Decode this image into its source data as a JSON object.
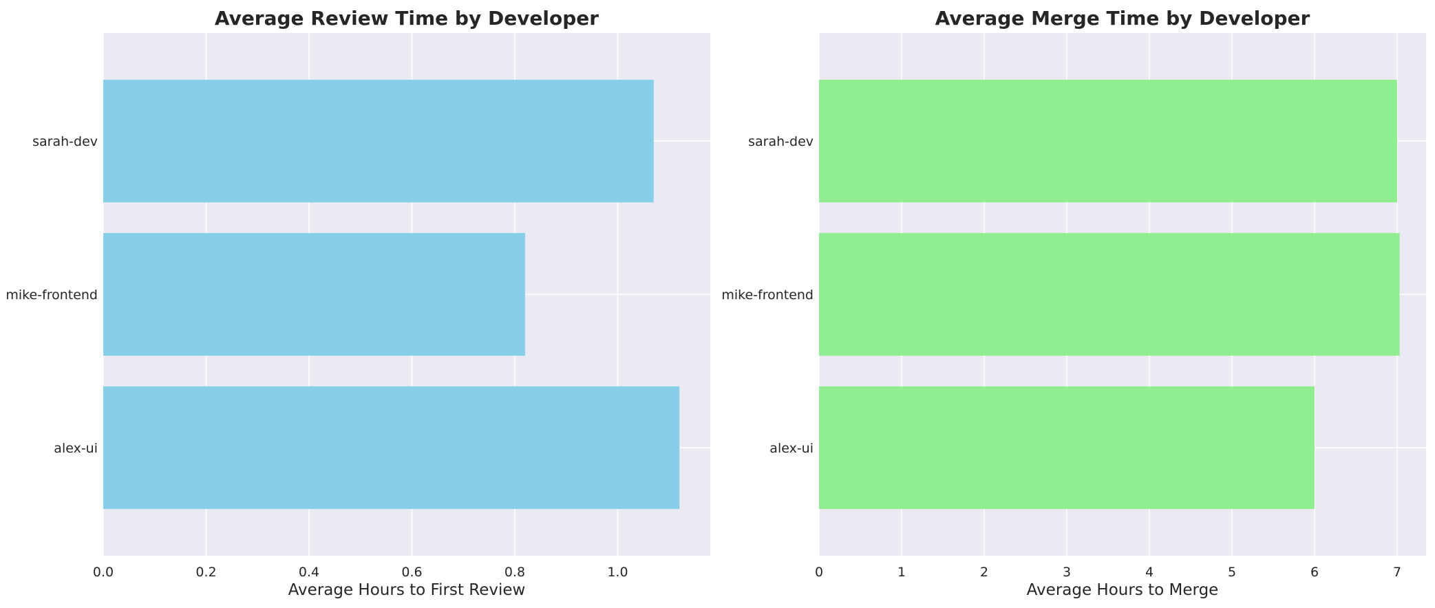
{
  "chart_data": [
    {
      "type": "bar",
      "orientation": "horizontal",
      "title": "Average Review Time by Developer",
      "xlabel": "Average Hours to First Review",
      "ylabel": "",
      "categories": [
        "sarah-dev",
        "mike-frontend",
        "alex-ui"
      ],
      "values": [
        1.07,
        0.82,
        1.12
      ],
      "xlim": [
        0,
        1.18
      ],
      "xticks": [
        0.0,
        0.2,
        0.4,
        0.6,
        0.8,
        1.0
      ],
      "xtick_labels": [
        "0.0",
        "0.2",
        "0.4",
        "0.6",
        "0.8",
        "1.0"
      ],
      "bar_color": "#87ceeb",
      "grid": true
    },
    {
      "type": "bar",
      "orientation": "horizontal",
      "title": "Average Merge Time by Developer",
      "xlabel": "Average Hours to Merge",
      "ylabel": "",
      "categories": [
        "sarah-dev",
        "mike-frontend",
        "alex-ui"
      ],
      "values": [
        7.0,
        7.03,
        6.0
      ],
      "xlim": [
        0,
        7.35
      ],
      "xticks": [
        0,
        1,
        2,
        3,
        4,
        5,
        6,
        7
      ],
      "xtick_labels": [
        "0",
        "1",
        "2",
        "3",
        "4",
        "5",
        "6",
        "7"
      ],
      "bar_color": "#90ee90",
      "grid": true
    }
  ],
  "theme": {
    "plot_background": "#eaeaf2",
    "grid_color": "#ffffff",
    "text_color": "#262626"
  }
}
